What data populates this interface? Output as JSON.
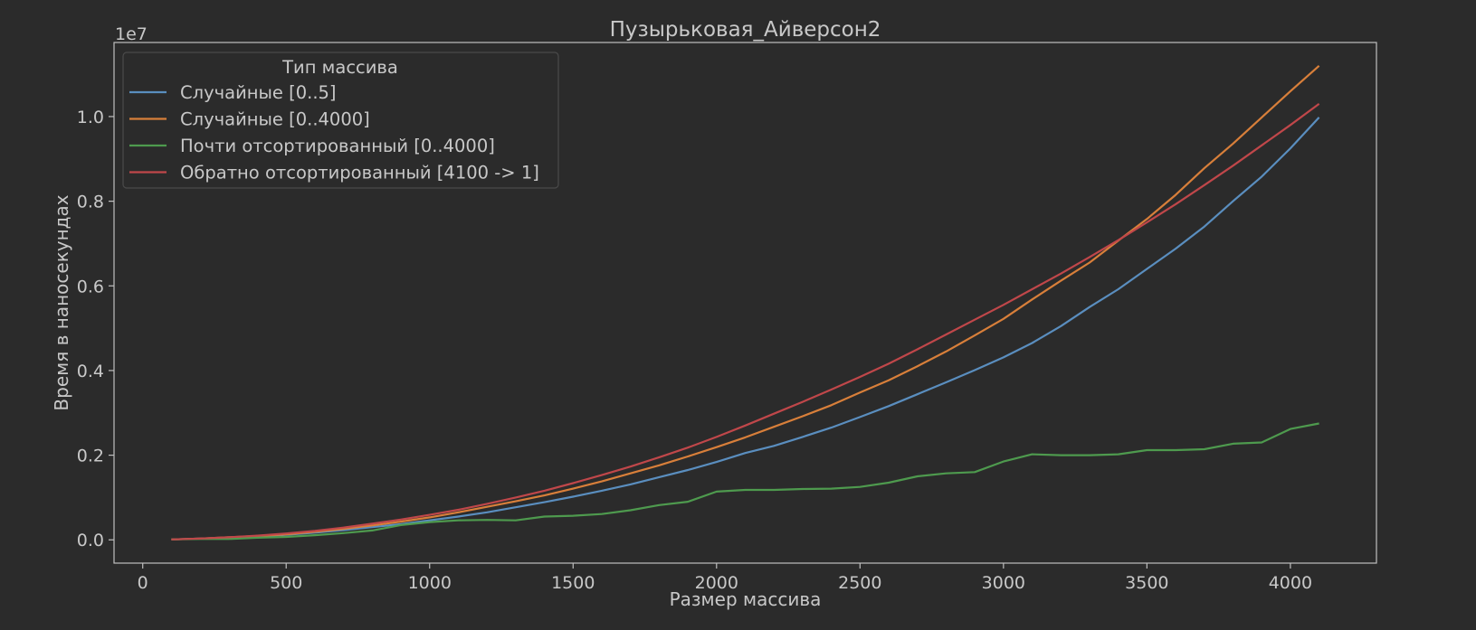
{
  "chart_data": {
    "type": "line",
    "title": "Пузырьковая_Айверсон2",
    "xlabel": "Размер массива",
    "ylabel": "Время в наносекундах",
    "offset_text": "1e7",
    "xlim": [
      -100,
      4300
    ],
    "ylim": [
      -0.055,
      1.175
    ],
    "xticks": [
      0,
      500,
      1000,
      1500,
      2000,
      2500,
      3000,
      3500,
      4000
    ],
    "xtick_labels": [
      "0",
      "500",
      "1000",
      "1500",
      "2000",
      "2500",
      "3000",
      "3500",
      "4000"
    ],
    "yticks": [
      0.0,
      0.2,
      0.4,
      0.6,
      0.8,
      1.0
    ],
    "ytick_labels": [
      "0.0",
      "0.2",
      "0.4",
      "0.6",
      "0.8",
      "1.0"
    ],
    "grid": false,
    "legend": {
      "title": "Тип массива",
      "placement": "top-left"
    },
    "x": [
      100,
      200,
      300,
      400,
      500,
      600,
      700,
      800,
      900,
      1000,
      1100,
      1200,
      1300,
      1400,
      1500,
      1600,
      1700,
      1800,
      1900,
      2000,
      2100,
      2200,
      2300,
      2400,
      2500,
      2600,
      2700,
      2800,
      2900,
      3000,
      3100,
      3200,
      3300,
      3400,
      3500,
      3600,
      3700,
      3800,
      3900,
      4000,
      4100
    ],
    "series": [
      {
        "name": "Случайные [0..5]",
        "color": "#5a8ebf",
        "values": [
          0.001,
          0.003,
          0.005,
          0.008,
          0.012,
          0.017,
          0.023,
          0.03,
          0.037,
          0.046,
          0.055,
          0.065,
          0.077,
          0.089,
          0.102,
          0.116,
          0.131,
          0.148,
          0.165,
          0.184,
          0.205,
          0.222,
          0.243,
          0.265,
          0.29,
          0.316,
          0.344,
          0.372,
          0.401,
          0.431,
          0.465,
          0.505,
          0.55,
          0.592,
          0.64,
          0.688,
          0.74,
          0.8,
          0.858,
          0.925,
          0.998
        ]
      },
      {
        "name": "Случайные [0..4000]",
        "color": "#d87f3a",
        "values": [
          0.001,
          0.003,
          0.006,
          0.009,
          0.013,
          0.019,
          0.026,
          0.034,
          0.043,
          0.053,
          0.065,
          0.078,
          0.091,
          0.105,
          0.121,
          0.138,
          0.157,
          0.176,
          0.197,
          0.219,
          0.242,
          0.267,
          0.292,
          0.318,
          0.348,
          0.377,
          0.41,
          0.445,
          0.483,
          0.522,
          0.568,
          0.612,
          0.655,
          0.707,
          0.758,
          0.815,
          0.878,
          0.936,
          0.998,
          1.06,
          1.12
        ]
      },
      {
        "name": "Почти отсортированный [0..4000]",
        "color": "#4e9a4e",
        "values": [
          0.001,
          0.002,
          0.002,
          0.005,
          0.007,
          0.011,
          0.016,
          0.022,
          0.035,
          0.042,
          0.046,
          0.047,
          0.046,
          0.055,
          0.057,
          0.061,
          0.07,
          0.082,
          0.09,
          0.114,
          0.118,
          0.118,
          0.12,
          0.121,
          0.125,
          0.135,
          0.15,
          0.157,
          0.16,
          0.185,
          0.202,
          0.2,
          0.2,
          0.202,
          0.212,
          0.212,
          0.214,
          0.227,
          0.23,
          0.262,
          0.275
        ]
      },
      {
        "name": "Обратно отсортированный [4100 -> 1]",
        "color": "#c0474a",
        "values": [
          0.001,
          0.003,
          0.006,
          0.01,
          0.015,
          0.021,
          0.029,
          0.038,
          0.048,
          0.059,
          0.071,
          0.085,
          0.1,
          0.116,
          0.134,
          0.153,
          0.173,
          0.195,
          0.218,
          0.243,
          0.27,
          0.298,
          0.326,
          0.355,
          0.385,
          0.416,
          0.45,
          0.485,
          0.52,
          0.555,
          0.592,
          0.629,
          0.668,
          0.708,
          0.75,
          0.793,
          0.838,
          0.884,
          0.932,
          0.98,
          1.03
        ]
      }
    ]
  }
}
